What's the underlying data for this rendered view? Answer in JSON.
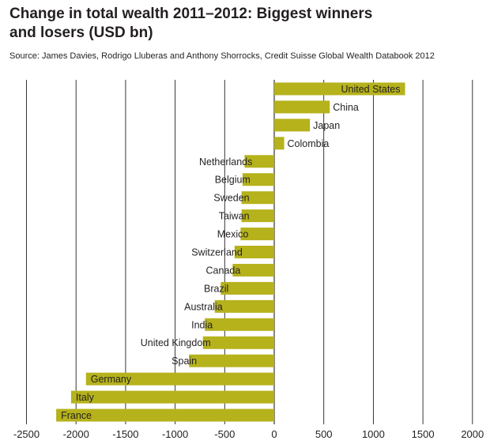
{
  "header": {
    "title_line1": "Change in total wealth 2011–2012: Biggest winners",
    "title_line2": "and losers (USD bn)",
    "source": "Source: James Davies, Rodrigo Lluberas and Anthony Shorrocks, Credit Suisse Global Wealth Databook 2012"
  },
  "chart_data": {
    "type": "bar",
    "orientation": "horizontal",
    "title": "Change in total wealth 2011–2012: Biggest winners and losers (USD bn)",
    "xlabel": "",
    "ylabel": "",
    "xlim": [
      -2500,
      2000
    ],
    "xticks": [
      -2500,
      -2000,
      -1500,
      -1000,
      -500,
      0,
      500,
      1000,
      1500,
      2000
    ],
    "xtick_labels": [
      "-2500",
      "-2000",
      "-1500",
      "-1000",
      "-500",
      "0",
      "500",
      "1000",
      "1500",
      "2000"
    ],
    "grid": "vertical",
    "bar_color": "#b5b21c",
    "categories": [
      "United States",
      "China",
      "Japan",
      "Colombia",
      "Netherlands",
      "Belgium",
      "Sweden",
      "Taiwan",
      "Mexico",
      "Switzerland",
      "Canada",
      "Brazil",
      "Australia",
      "India",
      "United Kingdom",
      "Spain",
      "Germany",
      "Italy",
      "France"
    ],
    "values": [
      1320,
      560,
      360,
      100,
      -300,
      -320,
      -330,
      -330,
      -340,
      -400,
      -420,
      -540,
      -600,
      -700,
      -720,
      -860,
      -1900,
      -2050,
      -2200
    ]
  }
}
